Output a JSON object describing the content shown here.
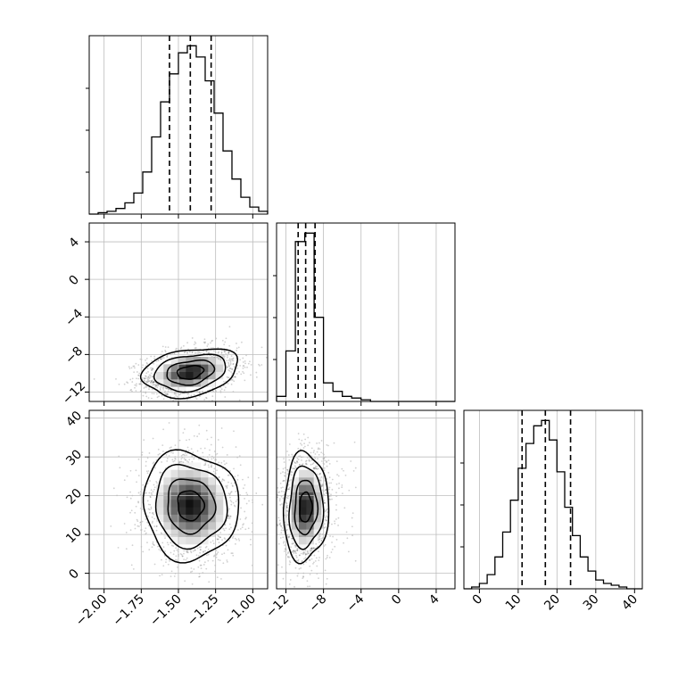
{
  "figure": {
    "title": "",
    "parameter_labels": [
      "",
      "",
      ""
    ]
  },
  "chart_data": {
    "type": "corner",
    "parameters": [
      {
        "range": [
          -2.1,
          -0.9
        ],
        "ticks": [
          -2.0,
          -1.75,
          -1.5,
          -1.25,
          -1.0
        ],
        "tick_labels": [
          "−2.00",
          "−1.75",
          "−1.50",
          "−1.25",
          "−1.00"
        ],
        "quantiles": [
          -1.56,
          -1.42,
          -1.28
        ]
      },
      {
        "range": [
          -13,
          6
        ],
        "ticks": [
          -12,
          -8,
          -4,
          0,
          4
        ],
        "tick_labels": [
          "−12",
          "−8",
          "−4",
          "0",
          "4"
        ],
        "quantiles": [
          -10.7,
          -9.9,
          -8.9
        ]
      },
      {
        "range": [
          -4,
          42
        ],
        "ticks": [
          0,
          10,
          20,
          30,
          40
        ],
        "tick_labels": [
          "0",
          "10",
          "20",
          "30",
          "40"
        ],
        "quantiles": [
          11,
          17,
          23.5
        ]
      }
    ],
    "histograms": [
      {
        "param": 0,
        "bin_edges": [
          -2.1,
          -2.04,
          -1.98,
          -1.92,
          -1.86,
          -1.8,
          -1.74,
          -1.68,
          -1.62,
          -1.56,
          -1.5,
          -1.44,
          -1.38,
          -1.32,
          -1.26,
          -1.2,
          -1.14,
          -1.08,
          -1.02,
          -0.96,
          -0.9
        ],
        "counts": [
          0,
          1,
          2,
          4,
          8,
          15,
          30,
          55,
          80,
          100,
          115,
          120,
          112,
          95,
          72,
          45,
          25,
          12,
          5,
          2
        ]
      },
      {
        "param": 1,
        "bin_edges": [
          -13,
          -12,
          -11,
          -10,
          -9,
          -8,
          -7,
          -6,
          -5,
          -4,
          -3,
          -2,
          -1,
          0,
          1,
          2,
          3,
          4,
          5,
          6
        ],
        "counts": [
          3,
          30,
          95,
          100,
          50,
          11,
          6,
          3,
          2,
          1,
          0,
          0,
          0,
          0,
          0,
          0,
          0,
          0,
          0
        ]
      },
      {
        "param": 2,
        "bin_edges": [
          -4,
          -2,
          0,
          2,
          4,
          6,
          8,
          10,
          12,
          14,
          16,
          18,
          20,
          22,
          24,
          26,
          28,
          30,
          32,
          34,
          36,
          38,
          40,
          42
        ],
        "counts": [
          0,
          1,
          3,
          8,
          18,
          32,
          50,
          68,
          82,
          92,
          95,
          84,
          66,
          46,
          30,
          18,
          10,
          5,
          3,
          2,
          1,
          0,
          0
        ]
      }
    ],
    "panels_2d": [
      {
        "x_param": 0,
        "y_param": 1,
        "center": [
          -1.42,
          -9.9
        ],
        "spread": [
          0.16,
          1.3
        ],
        "rho": 0.25
      },
      {
        "x_param": 0,
        "y_param": 2,
        "center": [
          -1.42,
          17.5
        ],
        "spread": [
          0.16,
          7.0
        ],
        "rho": -0.05
      },
      {
        "x_param": 1,
        "y_param": 2,
        "center": [
          -9.9,
          17.0
        ],
        "spread": [
          1.2,
          7.0
        ],
        "rho": 0.05
      }
    ],
    "grid": true,
    "legend": "none"
  }
}
